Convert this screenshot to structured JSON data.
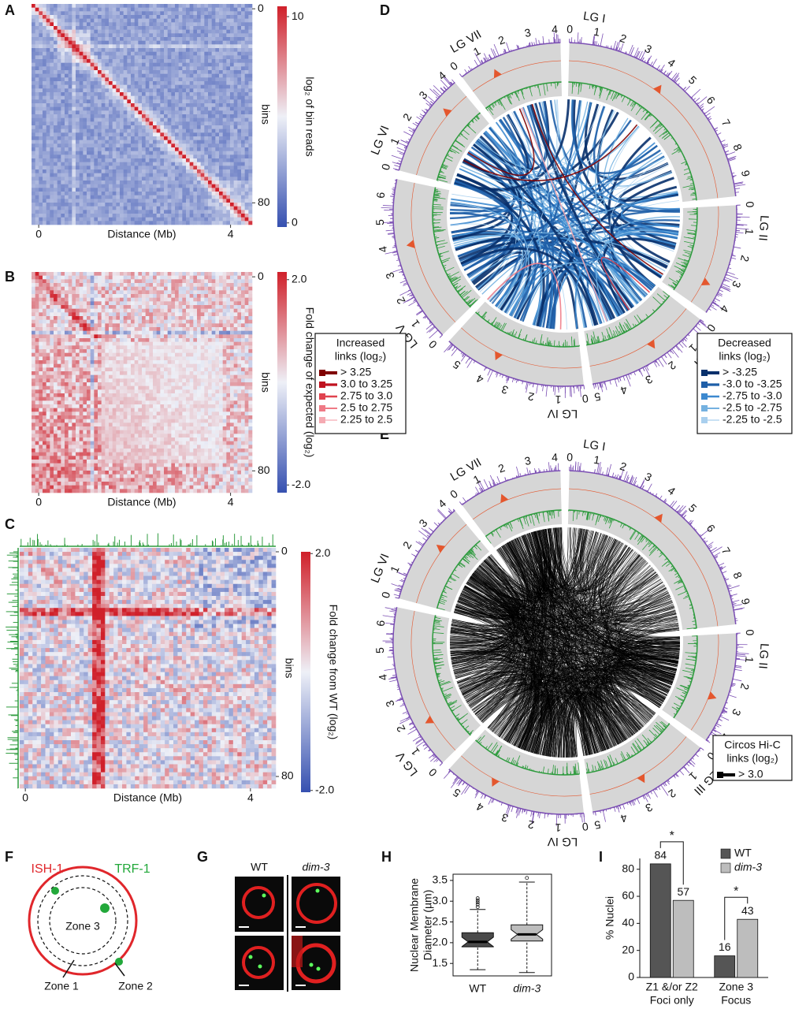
{
  "panel_letters": [
    "A",
    "B",
    "C",
    "D",
    "E",
    "F",
    "G",
    "H",
    "I"
  ],
  "chart_data": [
    {
      "type": "heatmap",
      "xlabel": "Distance (Mb)",
      "xlim": [
        -0.15,
        4.45
      ],
      "xticks": [
        0,
        4
      ],
      "ylabel": "bins",
      "ylim": [
        -2,
        89
      ],
      "yticks": [
        0,
        80
      ],
      "colorbar_label": "log₂ of bin reads",
      "clim": [
        -0.2,
        10.5
      ],
      "cticks": [
        0,
        10
      ],
      "colormap": [
        "#3650b0",
        "#eef0f7",
        "#d0202a"
      ]
    },
    {
      "type": "heatmap",
      "xlabel": "Distance (Mb)",
      "xlim": [
        -0.15,
        4.45
      ],
      "xticks": [
        0,
        4
      ],
      "ylabel": "bins",
      "ylim": [
        -2,
        89
      ],
      "yticks": [
        0,
        80
      ],
      "colorbar_label": "Fold change of expected (log₂)",
      "clim": [
        -2.15,
        2.15
      ],
      "cticks": [
        {
          "value": -2,
          "label": "-2.0"
        },
        {
          "value": 2,
          "label": "2.0"
        }
      ],
      "colormap": [
        "#3650b0",
        "#eef0f7",
        "#d0202a"
      ]
    },
    {
      "type": "heatmap",
      "xlabel": "Distance (Mb)",
      "xlim": [
        -0.1,
        4.45
      ],
      "xticks": [
        0,
        4
      ],
      "ylabel": "bins",
      "ylim": [
        -1.4,
        84.2
      ],
      "yticks": [
        0,
        80
      ],
      "colorbar_label": "Fold change from WT (log₂)",
      "clim": [
        -2.03,
        2.03
      ],
      "cticks": [
        {
          "value": -2,
          "label": "-2.0"
        },
        {
          "value": 2,
          "label": "2.0"
        }
      ],
      "colormap": [
        "#3650b0",
        "#eef0f7",
        "#d0202a"
      ],
      "track_color": "#2e9b3e"
    },
    {
      "type": "circos",
      "chromosomes": [
        {
          "name": "LG I",
          "length": 9.8,
          "ticks": [
            0,
            1,
            2,
            3,
            4,
            5,
            6,
            7,
            8,
            9
          ]
        },
        {
          "name": "LG II",
          "length": 4.5,
          "ticks": [
            0,
            1,
            2,
            3,
            4
          ]
        },
        {
          "name": "LG III",
          "length": 5.1,
          "ticks": [
            0,
            1,
            2,
            3,
            4,
            5
          ]
        },
        {
          "name": "LG IV",
          "length": 5.8,
          "ticks": [
            0,
            1,
            2,
            3,
            4,
            5
          ]
        },
        {
          "name": "LG V",
          "length": 6.7,
          "ticks": [
            0,
            1,
            2,
            3,
            4,
            5,
            6
          ]
        },
        {
          "name": "LG VI",
          "length": 4.2,
          "ticks": [
            0,
            1,
            2,
            3,
            4
          ]
        },
        {
          "name": "LG VII",
          "length": 4.2,
          "ticks": [
            0,
            1,
            2,
            3,
            4
          ]
        }
      ],
      "colors": {
        "outer": "#7b4fb3",
        "middle": "#e4572e",
        "inner": "#2e9b3e",
        "ring": "#d6d6d6"
      },
      "legends": [
        {
          "title": [
            "Increased",
            "links (log₂)"
          ],
          "items": [
            {
              "label": "> 3.25",
              "color": "#7f0000"
            },
            {
              "label": "3.0 to 3.25",
              "color": "#c0121f"
            },
            {
              "label": "2.75 to 3.0",
              "color": "#e0434f"
            },
            {
              "label": "2.5 to 2.75",
              "color": "#ef7a86"
            },
            {
              "label": "2.25 to 2.5",
              "color": "#f5aab2"
            }
          ]
        },
        {
          "title": [
            "Decreased",
            "links (log₂)"
          ],
          "items": [
            {
              "label": "> -3.25",
              "color": "#08306b"
            },
            {
              "label": "-3.0 to -3.25",
              "color": "#1f5fa8"
            },
            {
              "label": "-2.75 to -3.0",
              "color": "#3d89cf"
            },
            {
              "label": "-2.5 to -2.75",
              "color": "#74b1e0"
            },
            {
              "label": "-2.25 to -2.5",
              "color": "#a9cfee"
            }
          ]
        }
      ]
    },
    {
      "type": "circos",
      "chromosomes": [
        {
          "name": "LG I",
          "length": 9.8,
          "ticks": [
            0,
            1,
            2,
            3,
            4,
            5,
            6,
            7,
            8,
            9
          ]
        },
        {
          "name": "LG II",
          "length": 4.5,
          "ticks": [
            0,
            1,
            2,
            3,
            4
          ]
        },
        {
          "name": "LG III",
          "length": 5.1,
          "ticks": [
            0,
            1,
            2,
            3,
            4,
            5
          ]
        },
        {
          "name": "LG IV",
          "length": 5.8,
          "ticks": [
            0,
            1,
            2,
            3,
            4,
            5
          ]
        },
        {
          "name": "LG V",
          "length": 6.7,
          "ticks": [
            0,
            1,
            2,
            3,
            4,
            5,
            6
          ]
        },
        {
          "name": "LG VI",
          "length": 4.2,
          "ticks": [
            0,
            1,
            2,
            3,
            4
          ]
        },
        {
          "name": "LG VII",
          "length": 4.2,
          "ticks": [
            0,
            1,
            2,
            3,
            4
          ]
        }
      ],
      "colors": {
        "outer": "#7b4fb3",
        "middle": "#e4572e",
        "inner": "#2e9b3e",
        "ring": "#d6d6d6"
      },
      "legends": [
        {
          "title": [
            "Circos Hi-C",
            "links (log₂)"
          ],
          "items": [
            {
              "label": "> 3.0",
              "color": "#000000"
            }
          ]
        }
      ]
    },
    {
      "type": "box",
      "ylabel": [
        "Nuclear Membrane",
        "Diameter (µm)"
      ],
      "categories": [
        "WT",
        "dim-3"
      ],
      "colors": [
        "#4a4a4a",
        "#bdbdbd"
      ],
      "boxes": [
        {
          "whislo": 1.35,
          "q1": 1.9,
          "med": 2.02,
          "q3": 2.24,
          "whishi": 2.8,
          "fliers": [
            2.86,
            2.92,
            2.97,
            3.02,
            3.07
          ]
        },
        {
          "whislo": 1.28,
          "q1": 2.04,
          "med": 2.2,
          "q3": 2.43,
          "whishi": 3.46,
          "fliers": [
            3.56
          ]
        }
      ],
      "ylim": [
        1.2,
        3.65
      ],
      "yticks": [
        1.5,
        {
          "value": 2,
          "label": "2.0"
        },
        2.5,
        {
          "value": 3,
          "label": "3.0"
        },
        3.5
      ]
    },
    {
      "type": "bar",
      "ylabel": "% Nuclei",
      "categories": [
        [
          "Z1 &/or Z2",
          "Foci only"
        ],
        [
          "Zone 3",
          "Focus"
        ]
      ],
      "series": [
        {
          "name": "WT",
          "color": "#555555",
          "values": [
            84,
            16
          ]
        },
        {
          "name": "dim-3",
          "color": "#bdbdbd",
          "values": [
            57,
            43
          ]
        }
      ],
      "ylim": [
        0,
        88
      ],
      "yticks": [
        0,
        20,
        40,
        60,
        80
      ],
      "significance": [
        "*",
        "*"
      ]
    }
  ],
  "panel_f": {
    "outer_label": "ISH-1",
    "foci_label": "TRF-1",
    "zones": [
      "Zone 1",
      "Zone 2",
      "Zone 3"
    ]
  },
  "panel_g": {
    "columns": [
      "WT",
      "dim-3"
    ]
  }
}
